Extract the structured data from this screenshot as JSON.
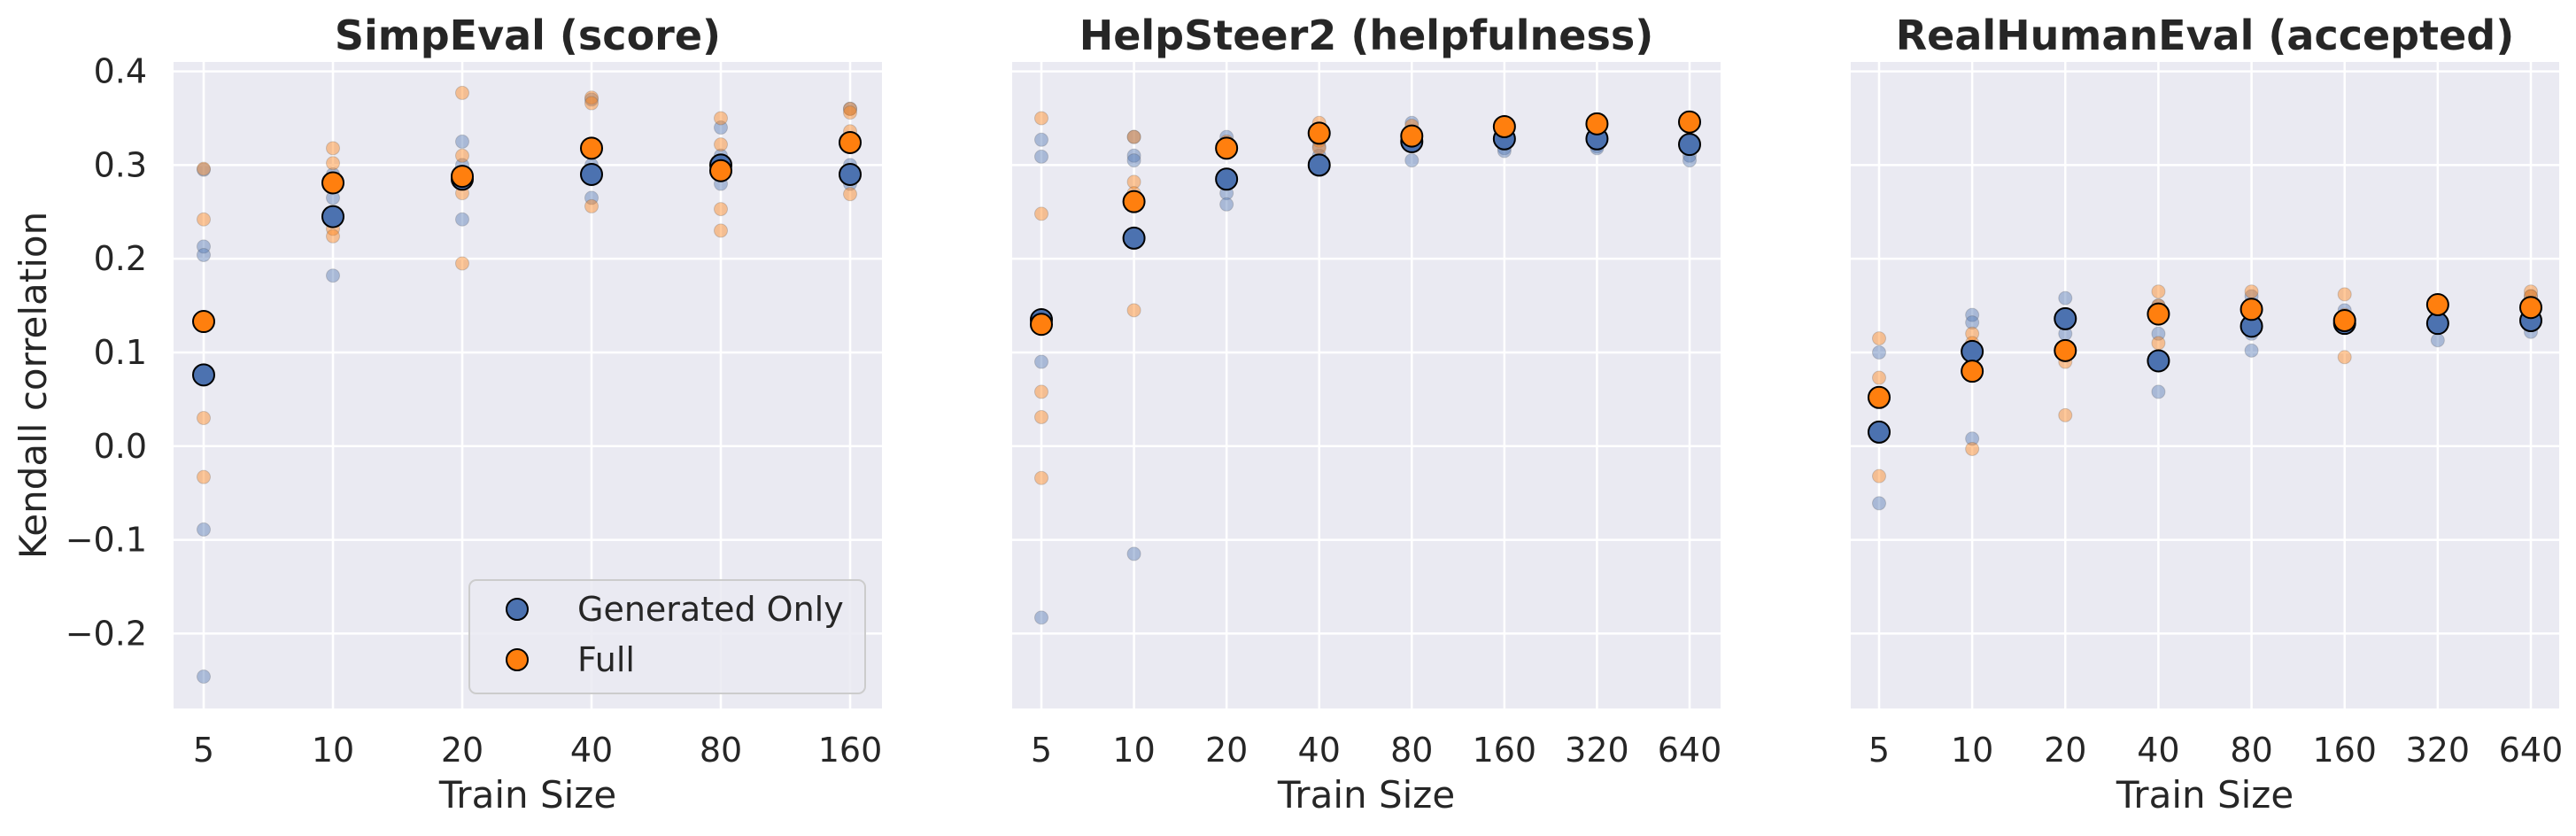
{
  "colors": {
    "generated_only": "#4c72b0",
    "full": "#ff7f0e",
    "panel_bg": "#eaeaf2",
    "grid": "#ffffff"
  },
  "shared": {
    "ylabel": "Kendall correlation",
    "xlabel": "Train Size",
    "legend": [
      "Generated Only",
      "Full"
    ],
    "legend_position": "lower right (first panel)"
  },
  "chart_data": [
    {
      "type": "scatter",
      "title": "SimpEval (score)",
      "xlabel": "Train Size",
      "ylabel": "Kendall correlation",
      "categories": [
        "5",
        "10",
        "20",
        "40",
        "80",
        "160"
      ],
      "ylim": [
        -0.28,
        0.41
      ],
      "yticks": [
        -0.2,
        -0.1,
        0.0,
        0.1,
        0.2,
        0.3,
        0.4
      ],
      "ytick_labels": [
        "−0.2",
        "−0.1",
        "0.0",
        "0.1",
        "0.2",
        "0.3",
        "0.4"
      ],
      "grid": true,
      "legend": "lower right",
      "series": [
        {
          "name": "Generated Only",
          "mean": [
            0.076,
            0.245,
            0.285,
            0.29,
            0.3,
            0.29
          ],
          "runs": [
            [
              0.295,
              0.213,
              0.204,
              -0.089,
              -0.246
            ],
            [
              0.29,
              0.182,
              0.24,
              0.265
            ],
            [
              0.325,
              0.242,
              0.28,
              0.3
            ],
            [
              0.37,
              0.265,
              0.3,
              0.285
            ],
            [
              0.34,
              0.28,
              0.305,
              0.31
            ],
            [
              0.36,
              0.29,
              0.3,
              0.28
            ]
          ]
        },
        {
          "name": "Full",
          "mean": [
            0.133,
            0.281,
            0.288,
            0.318,
            0.294,
            0.324
          ],
          "runs": [
            [
              0.296,
              0.242,
              0.03,
              -0.033
            ],
            [
              0.318,
              0.302,
              0.232,
              0.224
            ],
            [
              0.377,
              0.31,
              0.27,
              0.195
            ],
            [
              0.372,
              0.366,
              0.315,
              0.256
            ],
            [
              0.35,
              0.322,
              0.253,
              0.23
            ],
            [
              0.36,
              0.336,
              0.269,
              0.356
            ]
          ]
        }
      ]
    },
    {
      "type": "scatter",
      "title": "HelpSteer2 (helpfulness)",
      "xlabel": "Train Size",
      "categories": [
        "5",
        "10",
        "20",
        "40",
        "80",
        "160",
        "320",
        "640"
      ],
      "ylim": [
        -0.28,
        0.41
      ],
      "grid": true,
      "series": [
        {
          "name": "Generated Only",
          "mean": [
            0.135,
            0.222,
            0.285,
            0.3,
            0.325,
            0.328,
            0.328,
            0.322
          ],
          "runs": [
            [
              0.327,
              0.309,
              0.09,
              -0.183
            ],
            [
              0.33,
              0.31,
              0.305,
              -0.115
            ],
            [
              0.33,
              0.27,
              0.258
            ],
            [
              0.32,
              0.31,
              0.295
            ],
            [
              0.345,
              0.32,
              0.305
            ],
            [
              0.34,
              0.318,
              0.315
            ],
            [
              0.34,
              0.32,
              0.318
            ],
            [
              0.345,
              0.31,
              0.305
            ]
          ]
        },
        {
          "name": "Full",
          "mean": [
            0.13,
            0.261,
            0.318,
            0.334,
            0.331,
            0.341,
            0.344,
            0.346
          ],
          "runs": [
            [
              0.35,
              0.248,
              0.058,
              0.031,
              -0.034
            ],
            [
              0.33,
              0.282,
              0.27,
              0.145
            ],
            [
              0.325,
              0.318,
              0.32
            ],
            [
              0.345,
              0.326,
              0.318
            ],
            [
              0.342,
              0.335,
              0.328
            ],
            [
              0.346,
              0.34,
              0.335
            ],
            [
              0.348,
              0.34,
              0.336
            ],
            [
              0.35,
              0.348,
              0.34
            ]
          ]
        }
      ]
    },
    {
      "type": "scatter",
      "title": "RealHumanEval (accepted)",
      "xlabel": "Train Size",
      "categories": [
        "5",
        "10",
        "20",
        "40",
        "80",
        "160",
        "320",
        "640"
      ],
      "ylim": [
        -0.28,
        0.41
      ],
      "grid": true,
      "series": [
        {
          "name": "Generated Only",
          "mean": [
            0.015,
            0.101,
            0.136,
            0.091,
            0.128,
            0.131,
            0.131,
            0.134
          ],
          "runs": [
            [
              0.1,
              0.01,
              -0.061
            ],
            [
              0.14,
              0.132,
              0.008
            ],
            [
              0.158,
              0.14,
              0.12
            ],
            [
              0.15,
              0.12,
              0.058
            ],
            [
              0.16,
              0.12,
              0.102
            ],
            [
              0.145,
              0.13,
              0.135
            ],
            [
              0.155,
              0.13,
              0.113
            ],
            [
              0.16,
              0.13,
              0.122
            ]
          ]
        },
        {
          "name": "Full",
          "mean": [
            0.052,
            0.08,
            0.102,
            0.141,
            0.146,
            0.134,
            0.151,
            0.148
          ],
          "runs": [
            [
              0.115,
              0.073,
              -0.032
            ],
            [
              0.12,
              0.11,
              -0.003
            ],
            [
              0.14,
              0.09,
              0.033
            ],
            [
              0.165,
              0.15,
              0.11
            ],
            [
              0.165,
              0.15,
              0.14
            ],
            [
              0.162,
              0.14,
              0.095
            ],
            [
              0.155,
              0.15,
              0.145
            ],
            [
              0.165,
              0.16,
              0.14
            ]
          ]
        }
      ]
    }
  ]
}
